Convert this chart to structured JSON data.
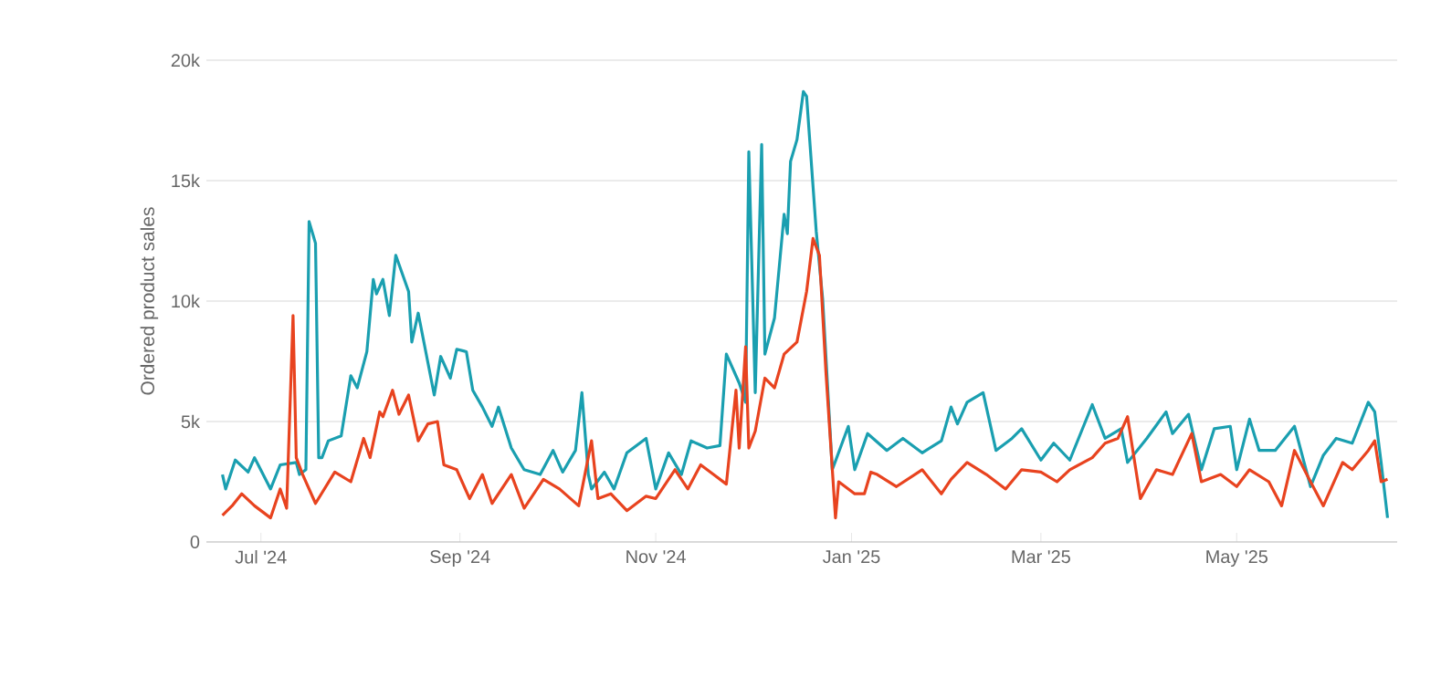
{
  "chart_data": {
    "type": "line",
    "ylabel": "Ordered product sales",
    "xlim": [
      "2024-06-14",
      "2025-06-20"
    ],
    "xticks": [
      {
        "value": "2024-07-01",
        "label": "Jul '24"
      },
      {
        "value": "2024-09-01",
        "label": "Sep '24"
      },
      {
        "value": "2024-11-01",
        "label": "Nov '24"
      },
      {
        "value": "2025-01-01",
        "label": "Jan '25"
      },
      {
        "value": "2025-03-01",
        "label": "Mar '25"
      },
      {
        "value": "2025-05-01",
        "label": "May '25"
      }
    ],
    "ylim": [
      0,
      20000
    ],
    "yticks": [
      {
        "value": 0,
        "label": "0"
      },
      {
        "value": 5000,
        "label": "5k"
      },
      {
        "value": 10000,
        "label": "10k"
      },
      {
        "value": 15000,
        "label": "15k"
      },
      {
        "value": 20000,
        "label": "20k"
      }
    ],
    "grid": "y",
    "marker": "none",
    "line_style": "solid",
    "series": [
      {
        "color": "#1a9fb0",
        "x": [
          "2024-06-19",
          "2024-06-20",
          "2024-06-23",
          "2024-06-27",
          "2024-06-29",
          "2024-07-04",
          "2024-07-07",
          "2024-07-12",
          "2024-07-13",
          "2024-07-15",
          "2024-07-16",
          "2024-07-18",
          "2024-07-19",
          "2024-07-20",
          "2024-07-22",
          "2024-07-26",
          "2024-07-29",
          "2024-07-31",
          "2024-08-03",
          "2024-08-05",
          "2024-08-06",
          "2024-08-08",
          "2024-08-10",
          "2024-08-12",
          "2024-08-16",
          "2024-08-17",
          "2024-08-19",
          "2024-08-24",
          "2024-08-26",
          "2024-08-29",
          "2024-08-31",
          "2024-09-03",
          "2024-09-05",
          "2024-09-08",
          "2024-09-11",
          "2024-09-13",
          "2024-09-17",
          "2024-09-21",
          "2024-09-26",
          "2024-09-30",
          "2024-10-03",
          "2024-10-07",
          "2024-10-09",
          "2024-10-11",
          "2024-10-12",
          "2024-10-16",
          "2024-10-19",
          "2024-10-23",
          "2024-10-29",
          "2024-11-01",
          "2024-11-05",
          "2024-11-09",
          "2024-11-12",
          "2024-11-17",
          "2024-11-21",
          "2024-11-23",
          "2024-11-27",
          "2024-11-29",
          "2024-11-30",
          "2024-12-02",
          "2024-12-04",
          "2024-12-05",
          "2024-12-08",
          "2024-12-11",
          "2024-12-12",
          "2024-12-13",
          "2024-12-15",
          "2024-12-17",
          "2024-12-18",
          "2024-12-21",
          "2024-12-23",
          "2024-12-26",
          "2024-12-31",
          "2025-01-02",
          "2025-01-06",
          "2025-01-12",
          "2025-01-17",
          "2025-01-23",
          "2025-01-29",
          "2025-02-01",
          "2025-02-03",
          "2025-02-06",
          "2025-02-11",
          "2025-02-15",
          "2025-02-20",
          "2025-02-23",
          "2025-03-01",
          "2025-03-05",
          "2025-03-10",
          "2025-03-17",
          "2025-03-21",
          "2025-03-26",
          "2025-03-28",
          "2025-04-03",
          "2025-04-09",
          "2025-04-11",
          "2025-04-16",
          "2025-04-20",
          "2025-04-24",
          "2025-04-29",
          "2025-05-01",
          "2025-05-05",
          "2025-05-08",
          "2025-05-13",
          "2025-05-19",
          "2025-05-24",
          "2025-05-28",
          "2025-06-01",
          "2025-06-06",
          "2025-06-11",
          "2025-06-13",
          "2025-06-15",
          "2025-06-17"
        ],
        "values": [
          2800,
          2200,
          3400,
          2900,
          3500,
          2200,
          3200,
          3300,
          2800,
          3000,
          13300,
          12400,
          3500,
          3500,
          4200,
          4400,
          6900,
          6400,
          7900,
          10900,
          10300,
          10900,
          9400,
          11900,
          10400,
          8300,
          9500,
          6100,
          7700,
          6800,
          8000,
          7900,
          6300,
          5600,
          4800,
          5600,
          3900,
          3000,
          2800,
          3800,
          2900,
          3800,
          6200,
          2800,
          2200,
          2900,
          2200,
          3700,
          4300,
          2200,
          3700,
          2800,
          4200,
          3900,
          4000,
          7800,
          6600,
          5800,
          16200,
          6200,
          16500,
          7800,
          9300,
          13600,
          12800,
          15800,
          16700,
          18700,
          18500,
          12900,
          10100,
          3000,
          4800,
          3000,
          4500,
          3800,
          4300,
          3700,
          4200,
          5600,
          4900,
          5800,
          6200,
          3800,
          4300,
          4700,
          3400,
          4100,
          3400,
          5700,
          4300,
          4700,
          3300,
          4300,
          5400,
          4500,
          5300,
          3000,
          4700,
          4800,
          3000,
          5100,
          3800,
          3800,
          4800,
          2300,
          3600,
          4300,
          4100,
          5800,
          5400,
          3300,
          1000
        ]
      },
      {
        "color": "#e8431f",
        "x": [
          "2024-06-19",
          "2024-06-22",
          "2024-06-25",
          "2024-06-29",
          "2024-07-04",
          "2024-07-07",
          "2024-07-09",
          "2024-07-11",
          "2024-07-12",
          "2024-07-14",
          "2024-07-18",
          "2024-07-24",
          "2024-07-29",
          "2024-08-02",
          "2024-08-04",
          "2024-08-07",
          "2024-08-08",
          "2024-08-11",
          "2024-08-13",
          "2024-08-16",
          "2024-08-19",
          "2024-08-22",
          "2024-08-25",
          "2024-08-27",
          "2024-08-31",
          "2024-09-04",
          "2024-09-08",
          "2024-09-11",
          "2024-09-17",
          "2024-09-21",
          "2024-09-27",
          "2024-10-02",
          "2024-10-08",
          "2024-10-12",
          "2024-10-14",
          "2024-10-18",
          "2024-10-23",
          "2024-10-29",
          "2024-11-01",
          "2024-11-07",
          "2024-11-11",
          "2024-11-15",
          "2024-11-19",
          "2024-11-23",
          "2024-11-26",
          "2024-11-27",
          "2024-11-29",
          "2024-11-30",
          "2024-12-02",
          "2024-12-05",
          "2024-12-08",
          "2024-12-11",
          "2024-12-15",
          "2024-12-18",
          "2024-12-20",
          "2024-12-22",
          "2024-12-24",
          "2024-12-27",
          "2024-12-28",
          "2025-01-02",
          "2025-01-05",
          "2025-01-07",
          "2025-01-09",
          "2025-01-15",
          "2025-01-23",
          "2025-01-29",
          "2025-02-01",
          "2025-02-06",
          "2025-02-12",
          "2025-02-18",
          "2025-02-23",
          "2025-03-01",
          "2025-03-06",
          "2025-03-10",
          "2025-03-17",
          "2025-03-21",
          "2025-03-25",
          "2025-03-28",
          "2025-04-01",
          "2025-04-06",
          "2025-04-11",
          "2025-04-17",
          "2025-04-20",
          "2025-04-26",
          "2025-05-01",
          "2025-05-05",
          "2025-05-11",
          "2025-05-15",
          "2025-05-19",
          "2025-05-24",
          "2025-05-28",
          "2025-06-03",
          "2025-06-06",
          "2025-06-11",
          "2025-06-13",
          "2025-06-15",
          "2025-06-17"
        ],
        "values": [
          1100,
          1500,
          2000,
          1500,
          1000,
          2200,
          1400,
          9400,
          3500,
          2800,
          1600,
          2900,
          2500,
          4300,
          3500,
          5400,
          5200,
          6300,
          5300,
          6100,
          4200,
          4900,
          5000,
          3200,
          3000,
          1800,
          2800,
          1600,
          2800,
          1400,
          2600,
          2200,
          1500,
          4200,
          1800,
          2000,
          1300,
          1900,
          1800,
          3000,
          2200,
          3200,
          2800,
          2400,
          6300,
          3900,
          8100,
          3900,
          4600,
          6800,
          6400,
          7800,
          8300,
          10400,
          12600,
          11900,
          7100,
          1000,
          2500,
          2000,
          2000,
          2900,
          2800,
          2300,
          3000,
          2000,
          2600,
          3300,
          2800,
          2200,
          3000,
          2900,
          2500,
          3000,
          3500,
          4100,
          4300,
          5200,
          1800,
          3000,
          2800,
          4500,
          2500,
          2800,
          2300,
          3000,
          2500,
          1500,
          3800,
          2500,
          1500,
          3300,
          3000,
          3800,
          4200,
          2500,
          2600
        ]
      }
    ]
  }
}
